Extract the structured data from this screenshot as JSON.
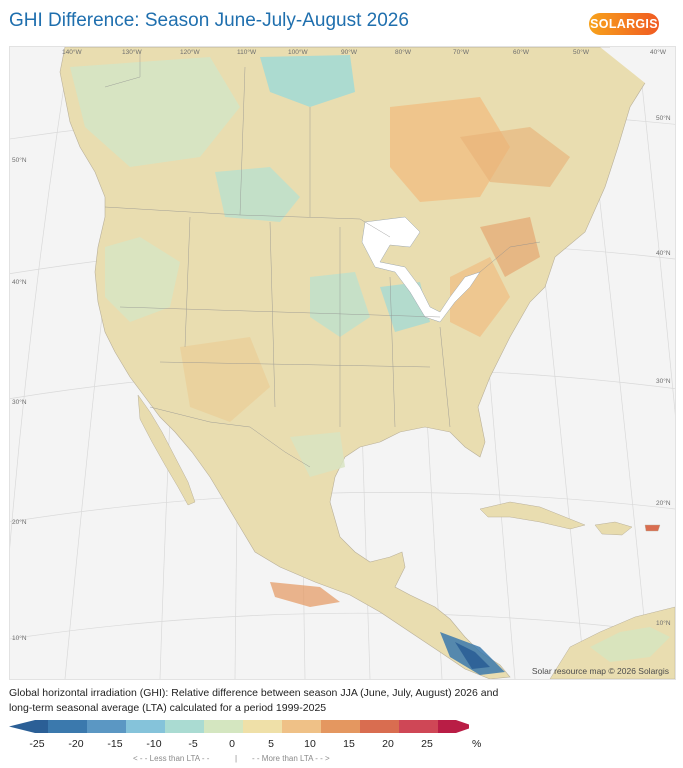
{
  "header": {
    "title": "GHI Difference: Season June-July-August 2026",
    "logo_text": "SOLARGIS"
  },
  "map": {
    "credit": "Solar resource map © 2026 Solargis",
    "lon_labels": [
      "140°W",
      "130°W",
      "120°W",
      "110°W",
      "100°W",
      "90°W",
      "80°W",
      "70°W",
      "60°W",
      "50°W",
      "40°W"
    ],
    "lat_labels_left": [
      "50°N",
      "40°N",
      "30°N",
      "20°N",
      "10°N"
    ],
    "lat_labels_right": [
      "50°N",
      "40°N",
      "30°N",
      "20°N",
      "10°N"
    ]
  },
  "caption": "Global horizontal irradiation (GHI): Relative difference between season JJA (June, July, August) 2026 and long-term seasonal average (LTA) calculated for a period 1999-2025",
  "legend": {
    "tick_labels": [
      "-25",
      "-20",
      "-15",
      "-10",
      "-5",
      "0",
      "5",
      "10",
      "15",
      "20",
      "25"
    ],
    "unit": "%",
    "less_label": "< - -  Less than LTA  - -",
    "separator": "|",
    "more_label": "- -  More than LTA  - - >",
    "colors": [
      "#2b5f96",
      "#3b79ad",
      "#5b97c3",
      "#85c3da",
      "#aadbd2",
      "#d4e6c0",
      "#efe0a8",
      "#efc187",
      "#e49760",
      "#d96d50",
      "#cf4756",
      "#b91d45"
    ]
  }
}
